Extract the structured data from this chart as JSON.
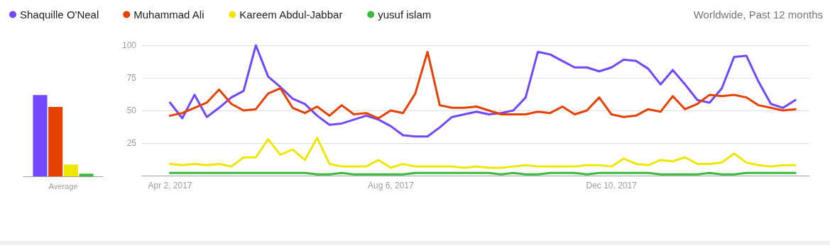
{
  "chart_data": [
    {
      "type": "bar",
      "categories": [
        "Average"
      ],
      "ylim": [
        0,
        100
      ],
      "tick_labels": "x",
      "series": [
        {
          "color": "#7148fc",
          "values": [
            62
          ]
        },
        {
          "color": "#e64100",
          "values": [
            53
          ]
        },
        {
          "color": "#efe700",
          "values": [
            9
          ]
        },
        {
          "color": "#3aba3a",
          "values": [
            2
          ]
        }
      ]
    },
    {
      "type": "line",
      "marker": "none",
      "line_style": "solid",
      "legend": "top left",
      "grid": "y",
      "annotations": [
        "Worldwide, Past 12 months"
      ],
      "x": [
        "2017-04-02",
        "2017-04-09",
        "2017-04-16",
        "2017-04-23",
        "2017-04-30",
        "2017-05-07",
        "2017-05-14",
        "2017-05-21",
        "2017-05-28",
        "2017-06-04",
        "2017-06-11",
        "2017-06-18",
        "2017-06-25",
        "2017-07-02",
        "2017-07-09",
        "2017-07-16",
        "2017-07-23",
        "2017-07-30",
        "2017-08-06",
        "2017-08-13",
        "2017-08-20",
        "2017-08-27",
        "2017-09-03",
        "2017-09-10",
        "2017-09-17",
        "2017-09-24",
        "2017-10-01",
        "2017-10-08",
        "2017-10-15",
        "2017-10-22",
        "2017-10-29",
        "2017-11-05",
        "2017-11-12",
        "2017-11-19",
        "2017-11-26",
        "2017-12-03",
        "2017-12-10",
        "2017-12-17",
        "2017-12-24",
        "2017-12-31",
        "2018-01-07",
        "2018-01-14",
        "2018-01-21",
        "2018-01-28",
        "2018-02-04",
        "2018-02-11",
        "2018-02-18",
        "2018-02-25",
        "2018-03-04",
        "2018-03-11",
        "2018-03-18",
        "2018-03-25"
      ],
      "xlim": [
        "2017-03-17",
        "2018-04-02"
      ],
      "xticks": [
        {
          "value": "2017-04-02",
          "label": "Apr 2, 2017"
        },
        {
          "value": "2017-08-06",
          "label": "Aug 6, 2017"
        },
        {
          "value": "2017-12-10",
          "label": "Dec 10, 2017"
        }
      ],
      "ylim": [
        0,
        100
      ],
      "yticks": [
        {
          "value": 0,
          "label": null
        },
        25,
        50,
        75,
        100
      ],
      "series": [
        {
          "name": "Shaquille O'Neal",
          "color": "#7148fc",
          "values": [
            56,
            44,
            62,
            45,
            52,
            60,
            65,
            100,
            76,
            68,
            59,
            55,
            46,
            39,
            40,
            43,
            46,
            43,
            38,
            31,
            30,
            30,
            37,
            45,
            47,
            49,
            47,
            48,
            50,
            60,
            95,
            93,
            88,
            83,
            83,
            80,
            83,
            89,
            88,
            82,
            70,
            81,
            70,
            58,
            56,
            67,
            91,
            92,
            72,
            55,
            52,
            58
          ]
        },
        {
          "name": "Muhammad Ali",
          "color": "#e64100",
          "values": [
            46,
            48,
            52,
            56,
            66,
            55,
            50,
            51,
            63,
            67,
            52,
            48,
            53,
            46,
            54,
            47,
            48,
            44,
            50,
            48,
            63,
            95,
            54,
            52,
            52,
            53,
            50,
            47,
            47,
            47,
            49,
            48,
            53,
            47,
            50,
            60,
            47,
            45,
            46,
            51,
            49,
            61,
            51,
            55,
            62,
            61,
            62,
            60,
            54,
            52,
            50,
            51
          ]
        },
        {
          "name": "Kareem Abdul-Jabbar",
          "color": "#efe700",
          "values": [
            9,
            8,
            9,
            8,
            9,
            7,
            14,
            14,
            28,
            16,
            20,
            12,
            29,
            9,
            7,
            7,
            7,
            12,
            6,
            9,
            7,
            7,
            7,
            7,
            6,
            7,
            6,
            6,
            7,
            8,
            7,
            7,
            7,
            7,
            8,
            8,
            7,
            13,
            9,
            8,
            12,
            11,
            14,
            9,
            9,
            10,
            17,
            10,
            8,
            7,
            8,
            8
          ]
        },
        {
          "name": "yusuf islam",
          "color": "#3aba3a",
          "values": [
            2,
            2,
            2,
            2,
            2,
            2,
            2,
            2,
            2,
            2,
            2,
            2,
            1,
            1,
            2,
            1,
            1,
            1,
            1,
            1,
            2,
            2,
            2,
            2,
            2,
            2,
            2,
            1,
            2,
            1,
            1,
            2,
            2,
            2,
            1,
            2,
            2,
            2,
            2,
            2,
            1,
            1,
            1,
            1,
            2,
            1,
            1,
            2,
            2,
            2,
            2,
            2
          ]
        }
      ]
    }
  ]
}
